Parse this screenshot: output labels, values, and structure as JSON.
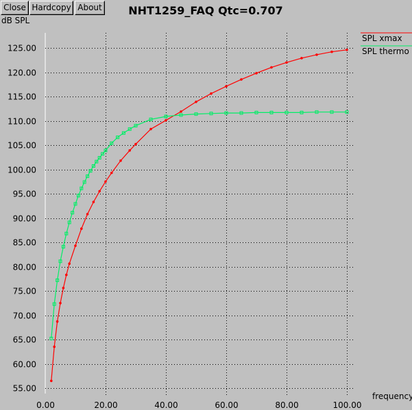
{
  "toolbar": {
    "close_label": "Close",
    "hardcopy_label": "Hardcopy",
    "about_label": "About"
  },
  "chart_data": {
    "type": "line",
    "title": "NHT1259_FAQ Qtc=0.707",
    "xlabel": "frequency",
    "ylabel": "dB SPL",
    "xlim": [
      0,
      100
    ],
    "ylim": [
      55,
      125
    ],
    "x_ticks": [
      "0.00",
      "20.00",
      "40.00",
      "60.00",
      "80.00",
      "100.00"
    ],
    "y_ticks": [
      "55.00",
      "60.00",
      "65.00",
      "70.00",
      "75.00",
      "80.00",
      "85.00",
      "90.00",
      "95.00",
      "100.00",
      "105.00",
      "110.00",
      "115.00",
      "120.00",
      "125.00"
    ],
    "grid": true,
    "legend_position": "top-right",
    "series": [
      {
        "name": "SPL xmax",
        "color": "#ff0000",
        "x": [
          2,
          3,
          4,
          5,
          6,
          7,
          8,
          10,
          12,
          14,
          16,
          18,
          20,
          22,
          25,
          28,
          30,
          35,
          40,
          45,
          50,
          55,
          60,
          65,
          70,
          75,
          80,
          85,
          90,
          95,
          100
        ],
        "y": [
          56.5,
          63.5,
          68.7,
          72.5,
          75.6,
          78.3,
          80.6,
          84.3,
          87.8,
          90.8,
          93.3,
          95.5,
          97.5,
          99.3,
          101.8,
          103.9,
          105.2,
          108.3,
          110.1,
          111.9,
          113.9,
          115.6,
          117.1,
          118.5,
          119.8,
          121.0,
          122.0,
          122.9,
          123.6,
          124.2,
          124.6
        ]
      },
      {
        "name": "SPL thermo",
        "color": "#00ee66",
        "x": [
          2,
          3,
          4,
          5,
          6,
          7,
          8,
          9,
          10,
          11,
          12,
          13,
          14,
          15,
          16,
          17,
          18,
          19,
          20,
          22,
          24,
          26,
          28,
          30,
          35,
          40,
          45,
          50,
          55,
          60,
          65,
          70,
          75,
          80,
          85,
          90,
          95,
          100
        ],
        "y": [
          65.2,
          72.3,
          77.2,
          81.1,
          84.1,
          86.8,
          89.1,
          91.1,
          92.9,
          94.6,
          96.1,
          97.4,
          98.6,
          99.7,
          100.7,
          101.6,
          102.4,
          103.2,
          103.9,
          105.4,
          106.6,
          107.5,
          108.3,
          109.0,
          110.3,
          110.9,
          111.2,
          111.4,
          111.5,
          111.6,
          111.6,
          111.7,
          111.7,
          111.7,
          111.7,
          111.8,
          111.8,
          111.8
        ]
      }
    ]
  }
}
